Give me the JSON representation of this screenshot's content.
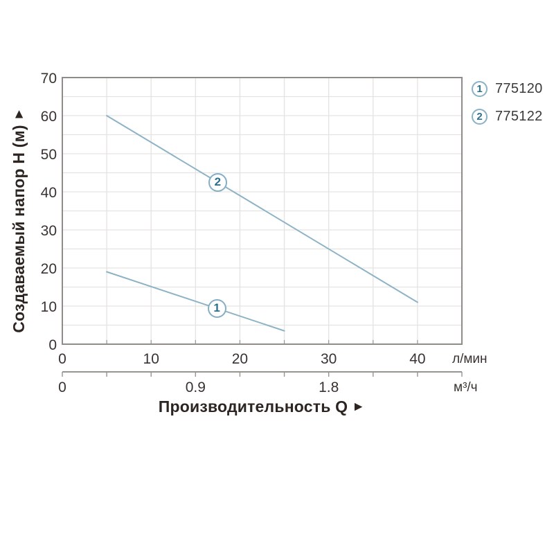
{
  "colors": {
    "background": "#ffffff",
    "grid": "#e5e3e1",
    "plot_border": "#8f8c88",
    "curve": "#8db3c6",
    "marker_border": "#84aec3",
    "marker_number": "#2b7091",
    "tick_text": "#3a3230",
    "title_text": "#2d2522",
    "ruler": "#97938f",
    "legend_text": "#3a3a3a"
  },
  "y_title": {
    "text": "Создаваемый напор H (м)",
    "arrow": "►"
  },
  "x_title": {
    "text": "Производительность Q",
    "arrow": "►"
  },
  "legend": {
    "position": "top-right",
    "items": [
      {
        "num": "1",
        "label": "775120"
      },
      {
        "num": "2",
        "label": "775122"
      }
    ]
  },
  "chart_data": {
    "type": "line",
    "title": "",
    "xlabel": "Производительность Q",
    "ylabel": "Создаваемый напор H (м)",
    "grid": true,
    "x_axis": {
      "unit": "л/мин",
      "min": 0,
      "max": 45,
      "grid_step": 5,
      "tick_labels": [
        0,
        10,
        20,
        30,
        40
      ]
    },
    "x_axis2": {
      "unit": "м³/ч",
      "tick_labels": [
        0,
        0.9,
        1.8
      ],
      "lmin_per_unit": 16.6667,
      "tick_step_lmin": 5
    },
    "y_axis": {
      "unit": "м",
      "min": 0,
      "max": 70,
      "grid_step": 5,
      "tick_labels": [
        70,
        60,
        50,
        40,
        30,
        20,
        10,
        0
      ]
    },
    "series": [
      {
        "id": "1",
        "model": "775120",
        "points": [
          {
            "q_lmin": 5,
            "h_m": 19
          },
          {
            "q_lmin": 25,
            "h_m": 3.5
          }
        ],
        "marker_at_q": 17.4
      },
      {
        "id": "2",
        "model": "775122",
        "points": [
          {
            "q_lmin": 5,
            "h_m": 60
          },
          {
            "q_lmin": 40,
            "h_m": 11
          }
        ],
        "marker_at_q": 17.5
      }
    ]
  }
}
